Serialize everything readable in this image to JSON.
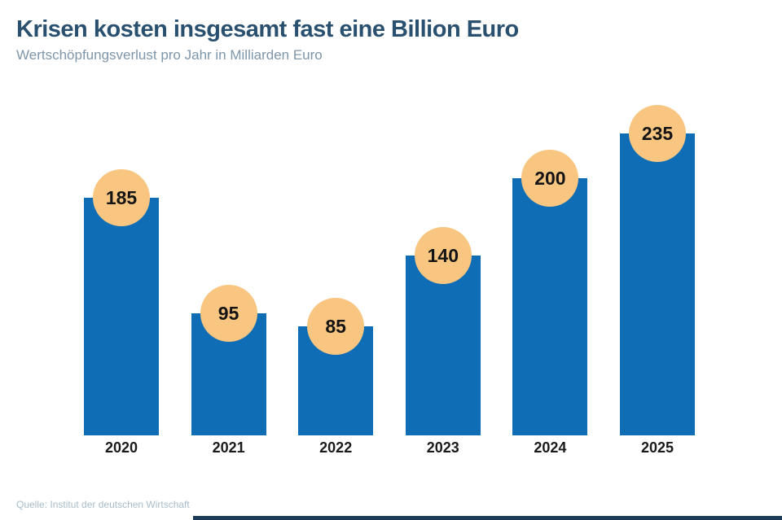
{
  "header": {
    "title": "Krisen kosten insgesamt fast eine Billion Euro",
    "subtitle": "Wertschöpfungsverlust pro Jahr in Milliarden Euro"
  },
  "footer": {
    "source": "Quelle: Institut der deutschen Wirtschaft"
  },
  "chart_data": {
    "type": "bar",
    "title": "Krisen kosten insgesamt fast eine Billion Euro",
    "subtitle": "Wertschöpfungsverlust pro Jahr in Milliarden Euro",
    "categories": [
      "2020",
      "2021",
      "2022",
      "2023",
      "2024",
      "2025"
    ],
    "values": [
      185,
      95,
      85,
      140,
      200,
      235
    ],
    "unit": "Milliarden Euro",
    "xlabel": "",
    "ylabel": "",
    "ylim": [
      0,
      255
    ],
    "grid": false,
    "legend": false,
    "value_labels": "in circles at bar tops",
    "source": "Quelle: Institut der deutschen Wirtschaft"
  },
  "colors": {
    "bar": "#0e6db4",
    "value_badge": "#f8c681",
    "value_text": "#141414",
    "title": "#2a506f",
    "subtitle": "#7e96aa",
    "x_label": "#1a1a1a",
    "source": "#a9bcca",
    "bottom_accent": "#1d3c5a",
    "background": "#ffffff"
  }
}
